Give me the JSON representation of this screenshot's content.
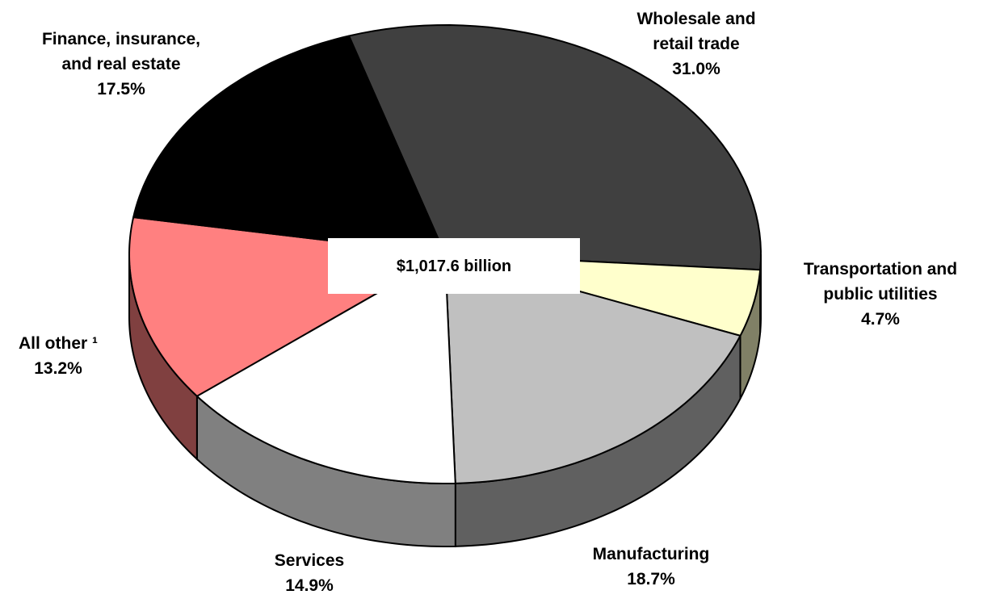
{
  "chart_data": {
    "type": "pie",
    "style": "3d",
    "title": "",
    "center_label": "$1,017.6 billion",
    "slices": [
      {
        "name": "Wholesale and retail trade",
        "value": 31.0,
        "label_lines": [
          "Wholesale and",
          "retail trade",
          "31.0%"
        ],
        "color": "#404040"
      },
      {
        "name": "Transportation and public utilities",
        "value": 4.7,
        "label_lines": [
          "Transportation and",
          "public utilities",
          "4.7%"
        ],
        "color": "#ffffcc"
      },
      {
        "name": "Manufacturing",
        "value": 18.7,
        "label_lines": [
          "Manufacturing",
          "18.7%"
        ],
        "color": "#c0c0c0"
      },
      {
        "name": "Services",
        "value": 14.9,
        "label_lines": [
          "Services",
          "14.9%"
        ],
        "color": "#ffffff"
      },
      {
        "name": "All other",
        "value": 13.2,
        "label_lines": [
          "All other ¹",
          "13.2%"
        ],
        "color": "#ff8080"
      },
      {
        "name": "Finance, insurance, and real estate",
        "value": 17.5,
        "label_lines": [
          "Finance, insurance,",
          "and real estate",
          "17.5%"
        ],
        "color": "#000000"
      }
    ]
  }
}
